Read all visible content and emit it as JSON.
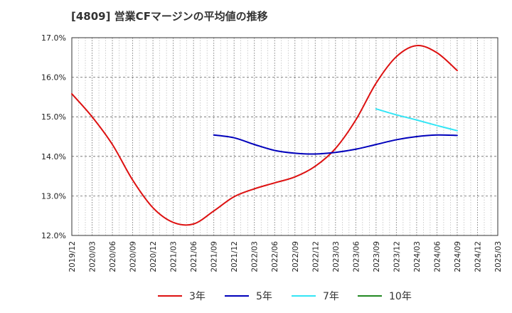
{
  "chart_data": {
    "type": "line",
    "title": "[4809]  営業CFマージンの平均値の推移",
    "xlabel": "",
    "ylabel": "",
    "ylim": [
      12.0,
      17.0
    ],
    "y_ticks": [
      "12.0%",
      "13.0%",
      "14.0%",
      "15.0%",
      "16.0%",
      "17.0%"
    ],
    "y_tick_values": [
      12,
      13,
      14,
      15,
      16,
      17
    ],
    "x": [
      "2019/12",
      "2020/03",
      "2020/06",
      "2020/09",
      "2020/12",
      "2021/03",
      "2021/06",
      "2021/09",
      "2021/12",
      "2022/03",
      "2022/06",
      "2022/09",
      "2022/12",
      "2023/03",
      "2023/06",
      "2023/09",
      "2023/12",
      "2024/03",
      "2024/06",
      "2024/09",
      "2024/12",
      "2025/03"
    ],
    "grid": true,
    "legend_position": "bottom",
    "series": [
      {
        "name": "3年",
        "color": "#dd1111",
        "values": [
          15.58,
          15.0,
          14.3,
          13.4,
          12.7,
          12.33,
          12.29,
          12.62,
          12.98,
          13.18,
          13.33,
          13.48,
          13.75,
          14.2,
          14.92,
          15.85,
          16.52,
          16.8,
          16.62,
          16.17,
          null,
          null
        ]
      },
      {
        "name": "5年",
        "color": "#0000bb",
        "values": [
          null,
          null,
          null,
          null,
          null,
          null,
          null,
          14.54,
          14.47,
          14.3,
          14.15,
          14.08,
          14.06,
          14.1,
          14.18,
          14.3,
          14.42,
          14.5,
          14.54,
          14.53,
          null,
          null
        ]
      },
      {
        "name": "7年",
        "color": "#33e5f5",
        "values": [
          null,
          null,
          null,
          null,
          null,
          null,
          null,
          null,
          null,
          null,
          null,
          null,
          null,
          null,
          null,
          15.2,
          15.05,
          14.92,
          14.78,
          14.65,
          null,
          null
        ]
      },
      {
        "name": "10年",
        "color": "#228822",
        "values": [
          null,
          null,
          null,
          null,
          null,
          null,
          null,
          null,
          null,
          null,
          null,
          null,
          null,
          null,
          null,
          null,
          null,
          null,
          null,
          null,
          null,
          null
        ]
      }
    ]
  }
}
